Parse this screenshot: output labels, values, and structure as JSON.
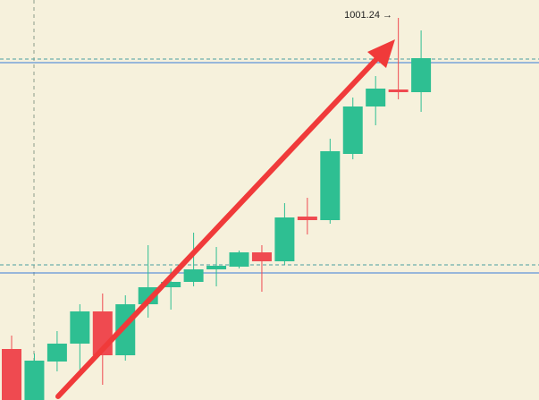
{
  "chart_data": {
    "type": "candlestick",
    "categories": [
      null,
      null,
      null,
      null,
      null,
      null,
      null,
      null,
      null,
      null,
      null,
      null,
      null,
      null,
      null,
      null,
      null,
      null,
      null
    ],
    "open": [
      964.24,
      958.54,
      962.84,
      964.84,
      968.44,
      963.54,
      969.24,
      971.14,
      971.74,
      973.14,
      973.44,
      975.04,
      974.04,
      979.04,
      978.64,
      986.04,
      991.34,
      993.24,
      992.94
    ],
    "high": [
      965.74,
      963.74,
      966.24,
      969.24,
      970.44,
      970.24,
      975.84,
      973.24,
      977.24,
      975.64,
      975.24,
      975.84,
      980.54,
      981.14,
      987.74,
      992.34,
      994.74,
      1001.24,
      999.84
    ],
    "low": [
      958.54,
      958.54,
      961.74,
      961.74,
      960.24,
      962.94,
      967.74,
      968.64,
      971.24,
      971.24,
      973.24,
      970.64,
      973.64,
      977.04,
      978.24,
      985.44,
      989.24,
      992.14,
      990.74
    ],
    "close": [
      958.54,
      962.94,
      964.84,
      968.44,
      963.54,
      969.24,
      971.14,
      971.74,
      973.14,
      973.54,
      975.04,
      974.04,
      978.94,
      978.64,
      986.34,
      991.34,
      993.34,
      992.94,
      996.74
    ],
    "up_color": "#2ebf92",
    "down_color": "#ef4a50",
    "ylim": [
      958.54,
      1003.24
    ],
    "annotation": {
      "value": 1001.24,
      "label": "1001.24 →"
    }
  }
}
